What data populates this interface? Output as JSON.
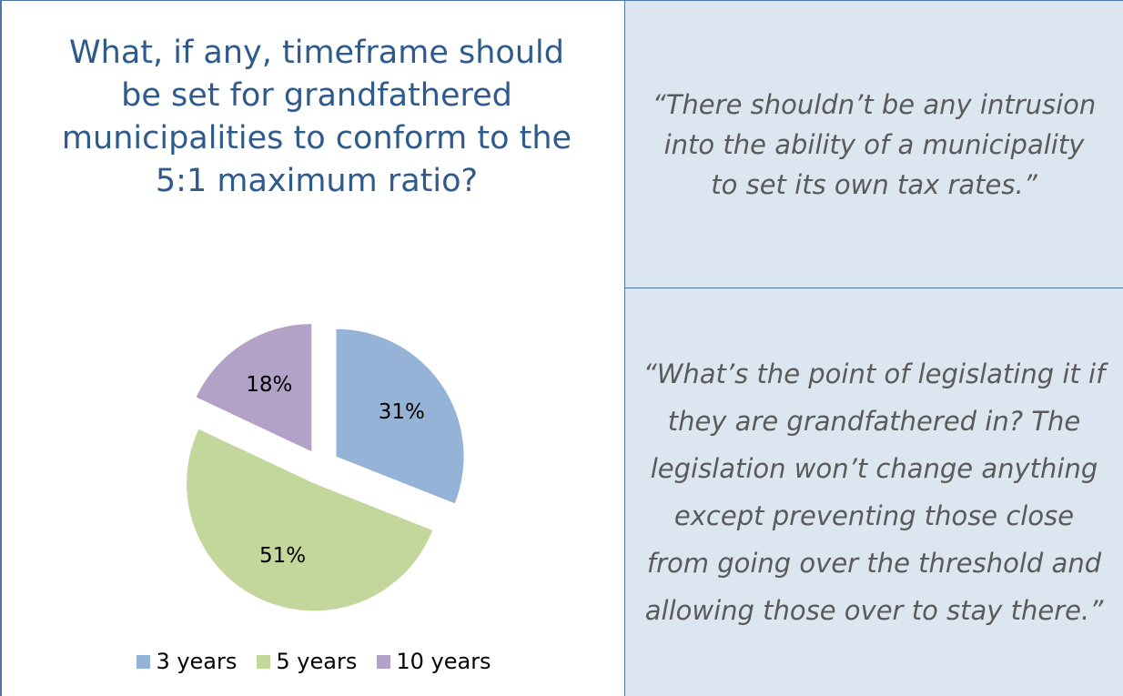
{
  "chart_data": {
    "type": "pie",
    "title": "What, if any, timeframe should be set for grandfathered municipalities to conform to the 5:1 maximum ratio?",
    "categories": [
      "3 years",
      "5 years",
      "10 years"
    ],
    "values": [
      31,
      51,
      18
    ],
    "value_labels": [
      "31%",
      "51%",
      "18%"
    ],
    "colors": [
      "#95b3d7",
      "#c3d69b",
      "#b2a2c7"
    ],
    "exploded": true,
    "legend_position": "bottom"
  },
  "quotes": [
    "“There shouldn’t be any intrusion into the ability of a municipality to set its own tax rates.”",
    "“What’s the point of legislating it if they are grandfathered in? The legislation won’t change anything except preventing those close from going over the threshold and allowing those over to stay there.”"
  ]
}
